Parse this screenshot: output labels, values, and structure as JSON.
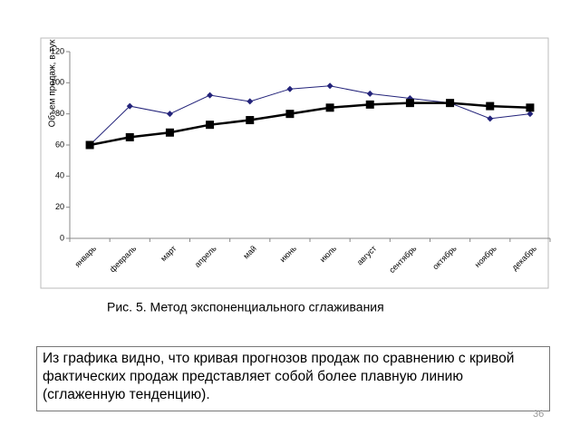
{
  "chart_data": {
    "type": "line",
    "y_label": "Объем продаж, в тук",
    "categories": [
      "январь",
      "февраль",
      "март",
      "апрель",
      "май",
      "июнь",
      "июль",
      "август",
      "сентябрь",
      "октябрь",
      "ноябрь",
      "декабрь"
    ],
    "series": [
      {
        "color": "#23237a",
        "marker": "diamond",
        "values": [
          60,
          85,
          80,
          92,
          88,
          96,
          98,
          93,
          90,
          87,
          77,
          80
        ]
      },
      {
        "color": "#000000",
        "marker": "square",
        "values": [
          60,
          65,
          68,
          73,
          76,
          80,
          84,
          86,
          87,
          87,
          85,
          84
        ]
      }
    ],
    "ylim": [
      0,
      120
    ],
    "yticks": [
      0,
      20,
      40,
      60,
      80,
      100,
      120
    ],
    "grid": false
  },
  "caption": "Рис. 5. Метод экспоненциального сглаживания",
  "text_box": {
    "lines": [
      "Из графика видно, что кривая прогнозов продаж по сравнению с кривой",
      "фактических продаж представляет собой более плавную линию",
      "(сглаженную тенденцию)."
    ]
  },
  "page_number": "36"
}
